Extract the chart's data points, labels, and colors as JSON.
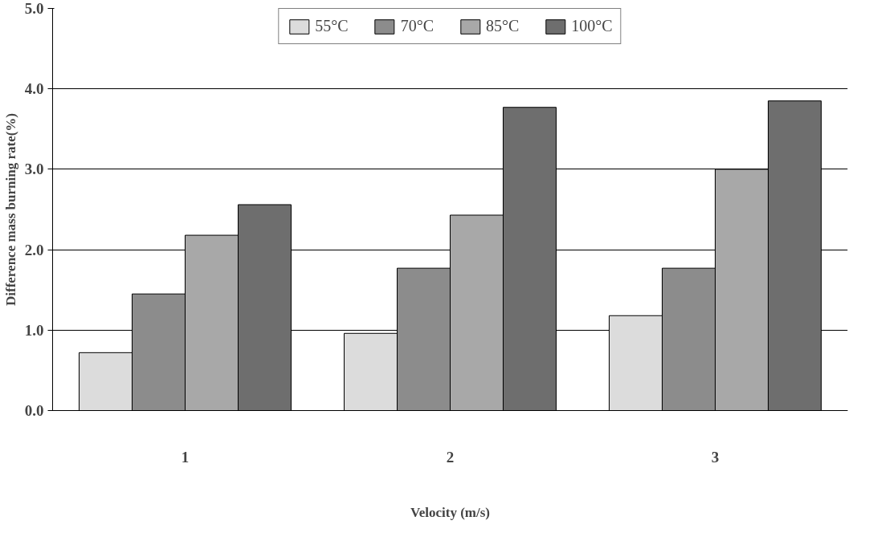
{
  "chart_data": {
    "type": "bar",
    "xlabel": "Velocity (m/s)",
    "ylabel": "Difference mass burning rate(%)",
    "categories": [
      "1",
      "2",
      "3"
    ],
    "series": [
      {
        "name": "55°C",
        "color": "#dcdcdc",
        "values": [
          0.72,
          0.96,
          1.18
        ]
      },
      {
        "name": "70°C",
        "color": "#8c8c8c",
        "values": [
          1.45,
          1.77,
          1.77
        ]
      },
      {
        "name": "85°C",
        "color": "#a8a8a8",
        "values": [
          2.18,
          2.43,
          3.0
        ]
      },
      {
        "name": "100°C",
        "color": "#6e6e6e",
        "values": [
          2.56,
          3.77,
          3.85
        ]
      }
    ],
    "ylim": [
      0,
      5
    ],
    "yticks": [
      {
        "value": 0,
        "label": "0.0"
      },
      {
        "value": 1,
        "label": "1.0"
      },
      {
        "value": 2,
        "label": "2.0"
      },
      {
        "value": 3,
        "label": "3.0"
      },
      {
        "value": 4,
        "label": "4.0"
      },
      {
        "value": 5,
        "label": "5.0"
      }
    ],
    "grid": "y",
    "legend": "top"
  }
}
